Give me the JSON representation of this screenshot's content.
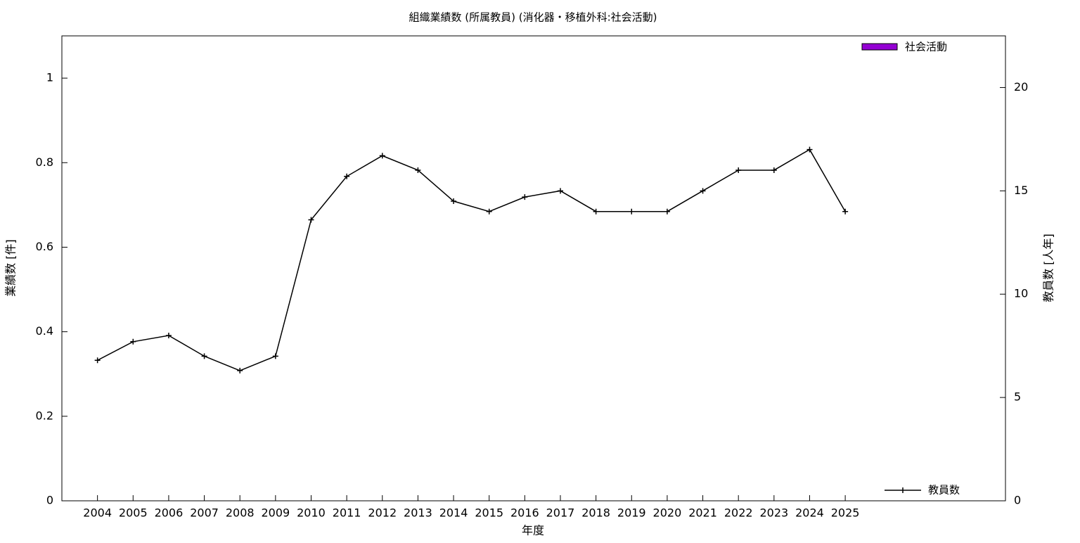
{
  "chart_data": {
    "type": "bar-line",
    "title": "組織業績数 (所属教員) (消化器・移植外科:社会活動)",
    "x_label": "年度",
    "y_label": "業績数 [件]",
    "y2_label": "教員数 [人年]",
    "categories": [
      "2004",
      "2005",
      "2006",
      "2007",
      "2008",
      "2009",
      "2010",
      "2011",
      "2012",
      "2013",
      "2014",
      "2015",
      "2016",
      "2017",
      "2018",
      "2019",
      "2020",
      "2021",
      "2022",
      "2023",
      "2024",
      "2025"
    ],
    "series": [
      {
        "name": "社会活動",
        "type": "bar",
        "color": "#9400d3",
        "values": [
          0,
          0,
          0,
          0,
          0,
          0,
          0,
          0,
          0,
          0,
          0,
          0,
          0,
          0,
          0,
          0,
          0,
          0,
          0,
          0,
          0,
          0
        ]
      },
      {
        "name": "教員数",
        "type": "line",
        "axis": "y2",
        "color": "#000000",
        "values": [
          6.8,
          7.7,
          8.0,
          7.0,
          6.3,
          7.0,
          13.6,
          15.7,
          16.7,
          16.0,
          14.5,
          14.0,
          14.7,
          15.0,
          14.0,
          14.0,
          14.0,
          15.0,
          16.0,
          16.0,
          17.0,
          14.0
        ]
      }
    ],
    "ylim": [
      0,
      1.1
    ],
    "yticks": [
      0,
      0.2,
      0.4,
      0.6,
      0.8,
      1
    ],
    "y2lim": [
      0,
      22.5
    ],
    "y2ticks": [
      0,
      5,
      10,
      15,
      20
    ]
  }
}
